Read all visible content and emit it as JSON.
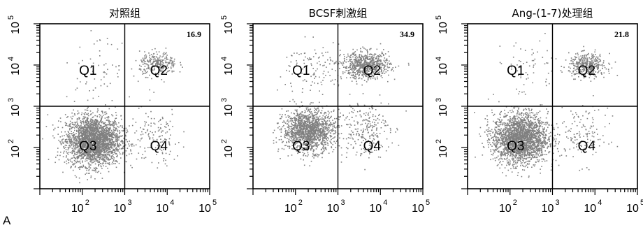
{
  "chart_data": [
    {
      "type": "scatter",
      "title": "对照组",
      "quadrant_labels": [
        "Q1",
        "Q2",
        "Q3",
        "Q4"
      ],
      "q2_percent": "16.9",
      "x_scale": "log",
      "y_scale": "log",
      "xlim": [
        10,
        100000
      ],
      "ylim": [
        10,
        100000
      ],
      "gate": {
        "x": 1000,
        "y": 1000
      },
      "x_ticks": [
        {
          "base": "10",
          "exp": "2"
        },
        {
          "base": "10",
          "exp": "3"
        },
        {
          "base": "10",
          "exp": "4"
        },
        {
          "base": "10",
          "exp": "5"
        }
      ],
      "y_ticks": [
        {
          "base": "10",
          "exp": "2"
        },
        {
          "base": "10",
          "exp": "3"
        },
        {
          "base": "10",
          "exp": "4"
        },
        {
          "base": "10",
          "exp": "5"
        }
      ],
      "clusters": [
        {
          "cx": 180,
          "cy": 150,
          "spread": [
            0.32,
            0.3
          ],
          "n": 2600
        },
        {
          "cx": 6000,
          "cy": 11000,
          "spread": [
            0.22,
            0.14
          ],
          "n": 260
        },
        {
          "cx": 5000,
          "cy": 180,
          "spread": [
            0.3,
            0.35
          ],
          "n": 140
        },
        {
          "cx": 250,
          "cy": 9000,
          "spread": [
            0.4,
            0.35
          ],
          "n": 60
        }
      ]
    },
    {
      "type": "scatter",
      "title": "BCSF刺激组",
      "quadrant_labels": [
        "Q1",
        "Q2",
        "Q3",
        "Q4"
      ],
      "q2_percent": "34.9",
      "x_scale": "log",
      "y_scale": "log",
      "xlim": [
        10,
        100000
      ],
      "ylim": [
        10,
        100000
      ],
      "gate": {
        "x": 1000,
        "y": 1000
      },
      "x_ticks": [
        {
          "base": "10",
          "exp": "2"
        },
        {
          "base": "10",
          "exp": "3"
        },
        {
          "base": "10",
          "exp": "4"
        },
        {
          "base": "10",
          "exp": "5"
        }
      ],
      "y_ticks": [
        {
          "base": "10",
          "exp": "2"
        },
        {
          "base": "10",
          "exp": "3"
        },
        {
          "base": "10",
          "exp": "4"
        },
        {
          "base": "10",
          "exp": "5"
        }
      ],
      "clusters": [
        {
          "cx": 200,
          "cy": 260,
          "spread": [
            0.3,
            0.25
          ],
          "n": 1500
        },
        {
          "cx": 4500,
          "cy": 10000,
          "spread": [
            0.28,
            0.16
          ],
          "n": 700
        },
        {
          "cx": 4000,
          "cy": 300,
          "spread": [
            0.3,
            0.35
          ],
          "n": 250
        },
        {
          "cx": 300,
          "cy": 8000,
          "spread": [
            0.4,
            0.35
          ],
          "n": 120
        }
      ]
    },
    {
      "type": "scatter",
      "title": "Ang-(1-7)处理组",
      "quadrant_labels": [
        "Q1",
        "Q2",
        "Q3",
        "Q4"
      ],
      "q2_percent": "21.8",
      "x_scale": "log",
      "y_scale": "log",
      "xlim": [
        10,
        100000
      ],
      "ylim": [
        10,
        100000
      ],
      "gate": {
        "x": 1000,
        "y": 1000
      },
      "x_ticks": [
        {
          "base": "10",
          "exp": "2"
        },
        {
          "base": "10",
          "exp": "3"
        },
        {
          "base": "10",
          "exp": "4"
        },
        {
          "base": "10",
          "exp": "5"
        }
      ],
      "y_ticks": [
        {
          "base": "10",
          "exp": "2"
        },
        {
          "base": "10",
          "exp": "3"
        },
        {
          "base": "10",
          "exp": "4"
        },
        {
          "base": "10",
          "exp": "5"
        }
      ],
      "clusters": [
        {
          "cx": 170,
          "cy": 170,
          "spread": [
            0.32,
            0.3
          ],
          "n": 2300
        },
        {
          "cx": 6500,
          "cy": 10000,
          "spread": [
            0.22,
            0.14
          ],
          "n": 380
        },
        {
          "cx": 5000,
          "cy": 200,
          "spread": [
            0.3,
            0.35
          ],
          "n": 140
        },
        {
          "cx": 250,
          "cy": 9000,
          "spread": [
            0.4,
            0.35
          ],
          "n": 60
        }
      ]
    }
  ],
  "figure": {
    "panel_letter": "A",
    "point_color": "#808080"
  }
}
